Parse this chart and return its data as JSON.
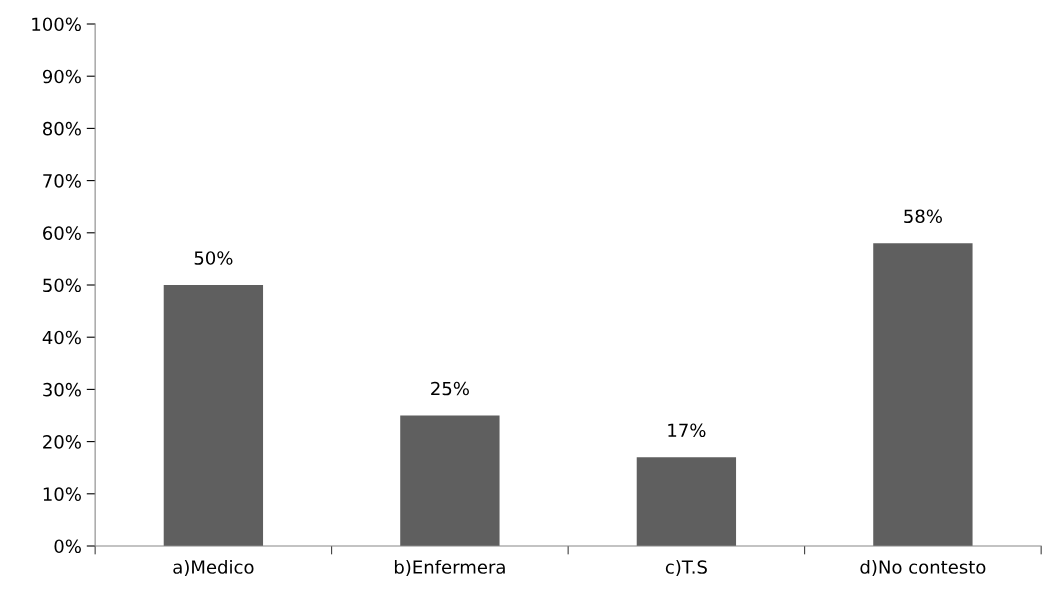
{
  "chart_data": {
    "type": "bar",
    "categories": [
      "a)Medico",
      "b)Enfermera",
      "c)T.S",
      "d)No contesto"
    ],
    "values": [
      50,
      25,
      17,
      58
    ],
    "value_labels": [
      "50%",
      "25%",
      "17%",
      "58%"
    ],
    "color": "#5f5f5f",
    "ylim": [
      0,
      100
    ],
    "yticks": [
      {
        "value": 0,
        "label": "0%"
      },
      {
        "value": 10,
        "label": "10%"
      },
      {
        "value": 20,
        "label": "20%"
      },
      {
        "value": 30,
        "label": "30%"
      },
      {
        "value": 40,
        "label": "40%"
      },
      {
        "value": 50,
        "label": "50%"
      },
      {
        "value": 60,
        "label": "60%"
      },
      {
        "value": 70,
        "label": "70%"
      },
      {
        "value": 80,
        "label": "80%"
      },
      {
        "value": 90,
        "label": "90%"
      },
      {
        "value": 100,
        "label": "100%"
      }
    ],
    "grid": false,
    "legend": false
  }
}
